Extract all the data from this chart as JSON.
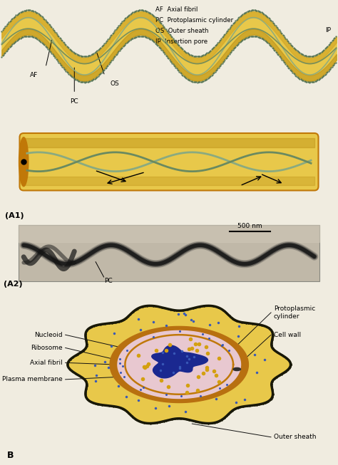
{
  "bg_color": "#f0ede0",
  "panel_A1_label": "(A1)",
  "panel_A2_label": "(A2)",
  "panel_B_label": "B",
  "legend_entries": [
    [
      "AF",
      "Axial fibril"
    ],
    [
      "PC",
      "Protoplasmic cylinder"
    ],
    [
      "OS",
      "Outer sheath"
    ],
    [
      "IP",
      "Insertion pore"
    ]
  ],
  "scale_bar": "500 nm",
  "cross_section_labels_left": [
    "Nucleoid",
    "Ribosome",
    "Axial fibril",
    "Plasma membrane"
  ],
  "cross_section_labels_right": [
    "Protoplasmic\ncylinder",
    "Cell wall"
  ],
  "colors": {
    "fig_bg": "#f0ece0",
    "outer_yellow": "#D4A828",
    "outer_yellow_light": "#E8C84A",
    "outer_yellow_dark": "#B88A10",
    "cylinder_brown": "#C07808",
    "cylinder_orange": "#D49020",
    "axial_green": "#8AAA80",
    "axial_green2": "#6A8A60",
    "dotted_green": "#507050",
    "cell_wall_brown": "#B87010",
    "inner_pink": "#E8C8D0",
    "nucleoid_blue": "#1A2890",
    "ribo_yellow": "#D4A010",
    "ribo_blue": "#3858B8",
    "outer_sheath_dark": "#181808",
    "label_line": "#111111",
    "em_bg": "#c0b8a8",
    "em_bg2": "#b0a898"
  }
}
